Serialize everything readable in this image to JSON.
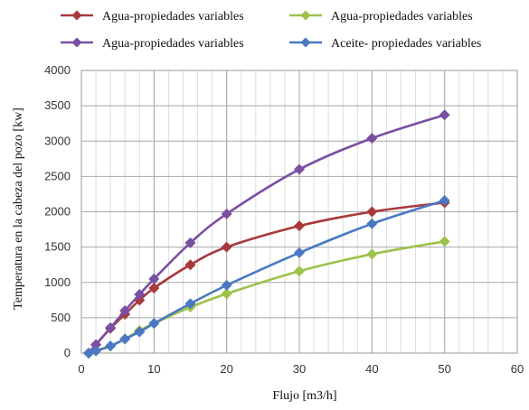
{
  "chart_data": {
    "type": "line",
    "title": "",
    "xlabel": "Flujo [m3/h]",
    "ylabel": "Temperatura en la cabeza del pozo [kw]",
    "xlim": [
      0,
      60
    ],
    "ylim": [
      0,
      4000
    ],
    "x_ticks": [
      0,
      10,
      20,
      30,
      40,
      50,
      60
    ],
    "y_ticks": [
      0,
      500,
      1000,
      1500,
      2000,
      2500,
      3000,
      3500,
      4000
    ],
    "x_tick_labels": [
      "0",
      "10",
      "20",
      "30",
      "40",
      "50",
      "60"
    ],
    "y_tick_labels": [
      "0",
      "500",
      "1000",
      "1500",
      "2000",
      "2500",
      "3000",
      "3500",
      "4000"
    ],
    "grid": true,
    "minor_x_step": 2,
    "legend_position": "top",
    "series": [
      {
        "name": "Agua-propiedades variables",
        "color": "#a8393b",
        "marker": "diamond",
        "x": [
          1,
          2,
          4,
          6,
          8,
          10,
          15,
          20,
          30,
          40,
          50
        ],
        "y": [
          0,
          120,
          350,
          550,
          750,
          920,
          1250,
          1500,
          1800,
          2000,
          2130
        ]
      },
      {
        "name": "Agua-propiedades variables",
        "color": "#9cc24a",
        "marker": "diamond",
        "x": [
          1,
          2,
          4,
          6,
          8,
          10,
          15,
          20,
          30,
          40,
          50
        ],
        "y": [
          0,
          40,
          100,
          200,
          320,
          420,
          650,
          840,
          1160,
          1400,
          1580
        ]
      },
      {
        "name": "Agua-propiedades variables",
        "color": "#7a4fa3",
        "marker": "diamond",
        "x": [
          1,
          2,
          4,
          6,
          8,
          10,
          15,
          20,
          30,
          40,
          50
        ],
        "y": [
          0,
          120,
          360,
          600,
          830,
          1050,
          1560,
          1970,
          2600,
          3040,
          3370
        ]
      },
      {
        "name": "Aceite- propiedades variables",
        "color": "#4a78c2",
        "marker": "diamond",
        "x": [
          1,
          2,
          4,
          6,
          8,
          10,
          15,
          20,
          30,
          40,
          50
        ],
        "y": [
          0,
          30,
          100,
          200,
          300,
          420,
          700,
          960,
          1420,
          1830,
          2160
        ]
      }
    ]
  }
}
